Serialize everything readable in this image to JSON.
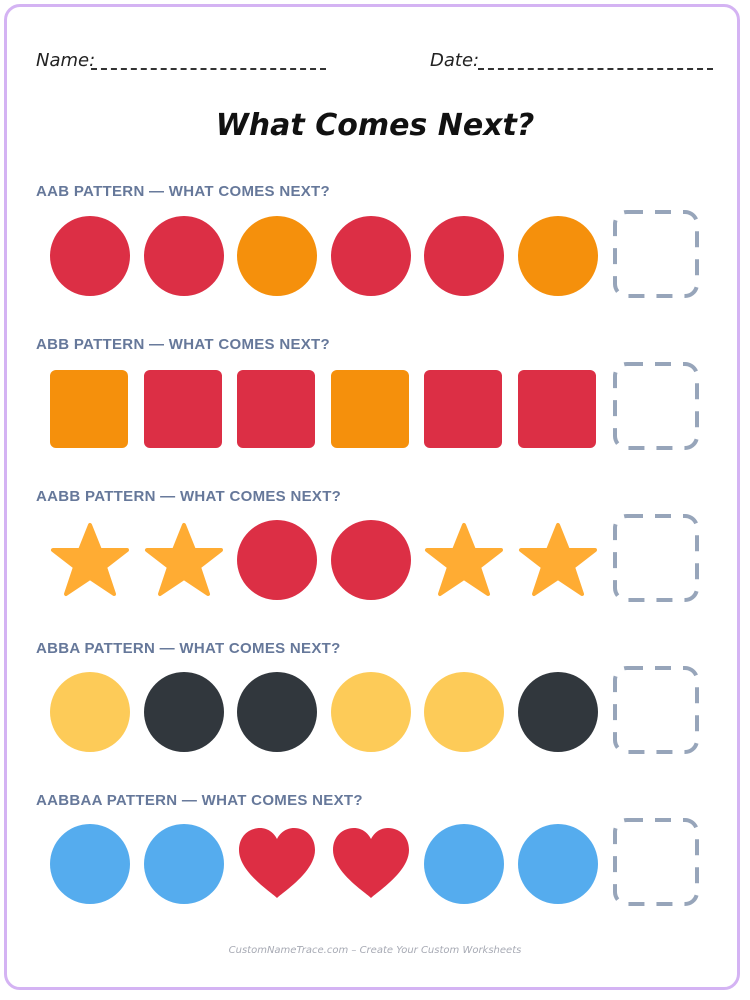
{
  "header": {
    "name_label": "Name:",
    "date_label": "Date:",
    "title": "What Comes Next?"
  },
  "colors": {
    "red": "#dc2f45",
    "orange": "#f5900c",
    "star": "#ffac33",
    "yellow": "#fdcb58",
    "black": "#31373d",
    "blue": "#55acee",
    "heart": "#dd2e44",
    "answer_box": "#97a5ba",
    "frame": "#d4b3f3"
  },
  "rows": [
    {
      "label": "AAB PATTERN — WHAT COMES NEXT?",
      "items": [
        "red-circle",
        "red-circle",
        "orange-circle",
        "red-circle",
        "red-circle",
        "orange-circle"
      ]
    },
    {
      "label": "ABB PATTERN — WHAT COMES NEXT?",
      "items": [
        "orange-square",
        "red-square",
        "red-square",
        "orange-square",
        "red-square",
        "red-square"
      ]
    },
    {
      "label": "AABB PATTERN — WHAT COMES NEXT?",
      "items": [
        "star",
        "star",
        "red-circle",
        "red-circle",
        "star",
        "star"
      ]
    },
    {
      "label": "ABBA PATTERN — WHAT COMES NEXT?",
      "items": [
        "yellow-circle",
        "black-circle",
        "black-circle",
        "yellow-circle",
        "yellow-circle",
        "black-circle"
      ]
    },
    {
      "label": "AABBAA PATTERN — WHAT COMES NEXT?",
      "items": [
        "blue-circle",
        "blue-circle",
        "heart",
        "heart",
        "blue-circle",
        "blue-circle"
      ]
    }
  ],
  "footer": "CustomNameTrace.com – Create Your Custom Worksheets"
}
